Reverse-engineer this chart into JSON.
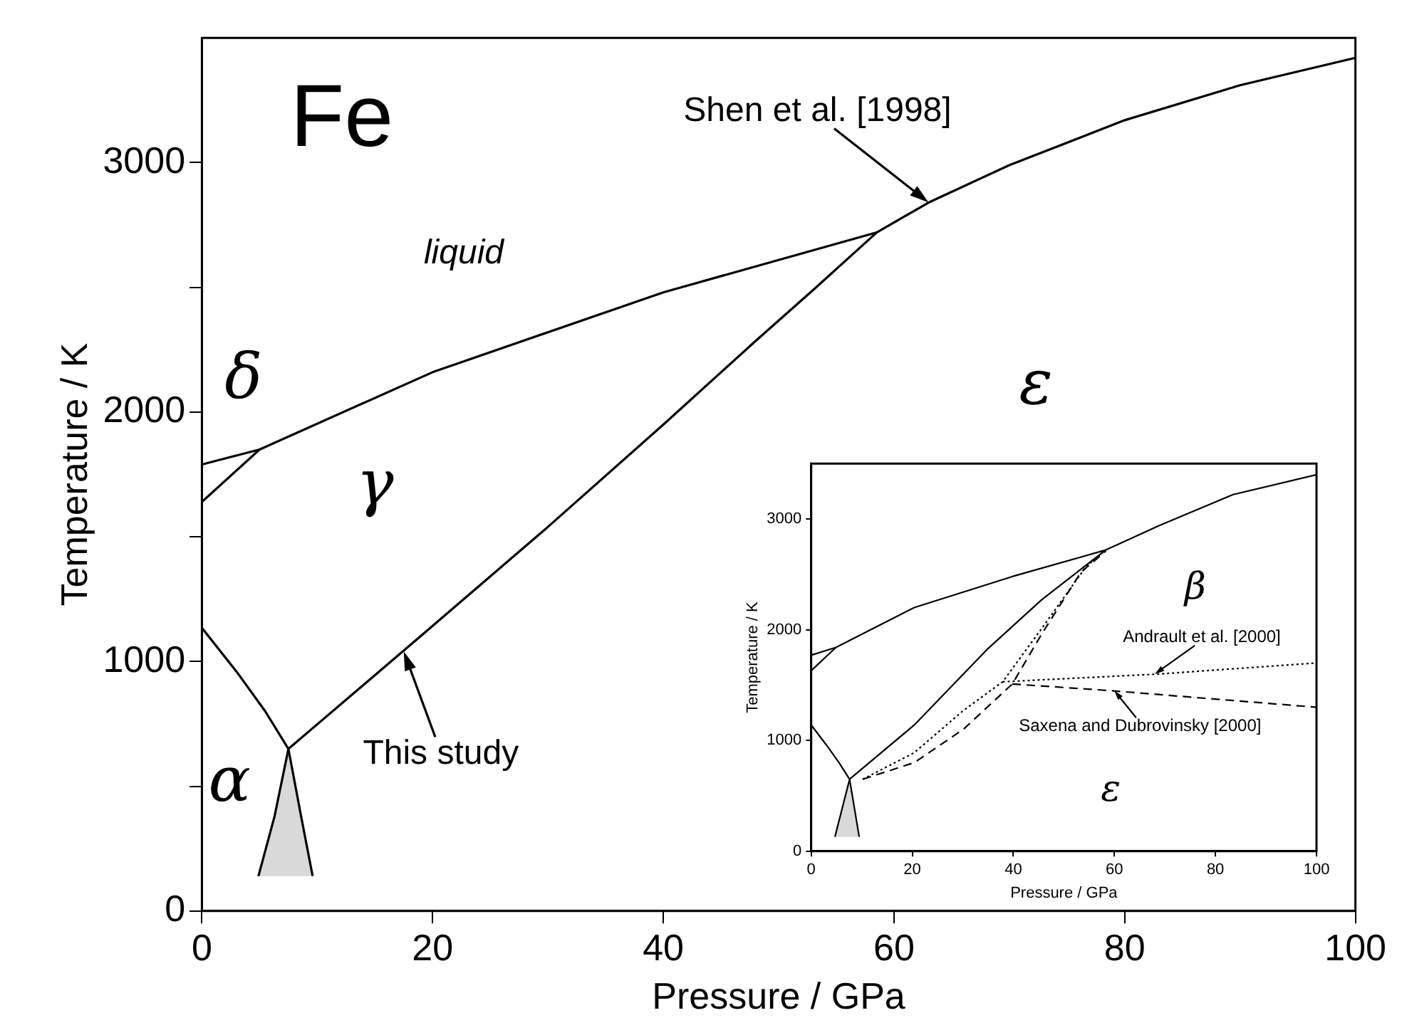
{
  "chart_data": [
    {
      "type": "line",
      "title": "Fe",
      "xlabel": "Pressure / GPa",
      "ylabel": "Temperature / K",
      "xlim": [
        0,
        100
      ],
      "ylim": [
        0,
        3500
      ],
      "xticks": [
        0,
        20,
        40,
        60,
        80,
        100
      ],
      "yticks": [
        0,
        {
          "value": 500,
          "label": null
        },
        1000,
        {
          "value": 1500,
          "label": null
        },
        2000,
        {
          "value": 2500,
          "label": null
        },
        3000
      ],
      "marker": "none",
      "legend": false,
      "grid": false,
      "series": [
        {
          "color": "#000000",
          "x": [
            0,
            5,
            20,
            40,
            58.5,
            63,
            70,
            80,
            90,
            100
          ],
          "values": [
            1790,
            1850,
            2160,
            2480,
            2720,
            2840,
            2990,
            3170,
            3310,
            3420
          ]
        },
        {
          "color": "#000000",
          "x": [
            0,
            5
          ],
          "values": [
            1640,
            1850
          ]
        },
        {
          "color": "#000000",
          "x": [
            0,
            3,
            5.5,
            7.5,
            8.6,
            9.6
          ],
          "values": [
            1135,
            960,
            800,
            650,
            380,
            140
          ]
        },
        {
          "color": "#000000",
          "x": [
            4.9,
            6.3,
            7.5,
            19.3,
            30,
            40,
            48,
            53,
            58.5
          ],
          "values": [
            140,
            380,
            650,
            1115,
            1540,
            1950,
            2285,
            2490,
            2720
          ]
        },
        {
          "type": "area",
          "color": "#d9d9d9",
          "x": [
            4.9,
            6.3,
            7.5,
            8.6,
            9.6
          ],
          "values": [
            140,
            380,
            650,
            380,
            140
          ]
        }
      ],
      "annotations": [
        "liquid",
        "δ",
        "γ",
        "ε",
        "α",
        {
          "text": "Shen et al. [1998]",
          "x": 63,
          "y": 2840
        },
        {
          "text": "This study",
          "x": 17.5,
          "y": 1040
        }
      ]
    },
    {
      "type": "line",
      "xlabel": "Pressure / GPa",
      "ylabel": "Temperature / K",
      "xlim": [
        0,
        100
      ],
      "ylim": [
        0,
        3500
      ],
      "xticks": [
        0,
        20,
        40,
        60,
        80,
        100
      ],
      "yticks": [
        0,
        1000,
        2000,
        3000
      ],
      "marker": "none",
      "legend": false,
      "grid": false,
      "series": [
        {
          "color": "#000000",
          "x": [
            0,
            4.9,
            20.4,
            39.8,
            58.3,
            68.9,
            83.5,
            100
          ],
          "values": [
            1770,
            1840,
            2200,
            2480,
            2720,
            2940,
            3220,
            3400
          ]
        },
        {
          "color": "#000000",
          "x": [
            0,
            4.9
          ],
          "values": [
            1630,
            1840
          ]
        },
        {
          "color": "#000000",
          "x": [
            0,
            3,
            5.5,
            7.6,
            9.5
          ],
          "values": [
            1140,
            960,
            800,
            650,
            130
          ]
        },
        {
          "color": "#000000",
          "x": [
            4.7,
            7.6,
            20.4,
            35,
            45.6,
            58.3
          ],
          "values": [
            130,
            650,
            1140,
            1830,
            2270,
            2720
          ]
        },
        {
          "type": "area",
          "color": "#d9d9d9",
          "x": [
            4.7,
            7.6,
            9.5
          ],
          "values": [
            130,
            650,
            130
          ]
        },
        {
          "color": "#000000",
          "line_style": "dotted",
          "x": [
            10.2,
            20.4,
            30.1,
            37.9,
            45.6,
            54.4,
            58.3
          ],
          "values": [
            650,
            890,
            1270,
            1530,
            2010,
            2570,
            2720
          ]
        },
        {
          "color": "#000000",
          "line_style": "dotted",
          "x": [
            37.9,
            68.9,
            100
          ],
          "values": [
            1530,
            1600,
            1700
          ]
        },
        {
          "color": "#000000",
          "line_style": "dashed",
          "x": [
            10.2,
            20.4,
            30.1,
            39.8,
            45.6,
            53.4,
            58.3
          ],
          "values": [
            650,
            800,
            1100,
            1510,
            1960,
            2520,
            2710
          ]
        },
        {
          "color": "#000000",
          "line_style": "dashed",
          "x": [
            39.8,
            59.2,
            100
          ],
          "values": [
            1510,
            1450,
            1300
          ]
        }
      ],
      "annotations": [
        "β",
        "ε",
        {
          "text": "Andrault et al. [2000]",
          "x": 68,
          "y": 1600
        },
        {
          "text": "Saxena and Dubrovinsky [2000]",
          "x": 60,
          "y": 1450
        }
      ]
    }
  ]
}
